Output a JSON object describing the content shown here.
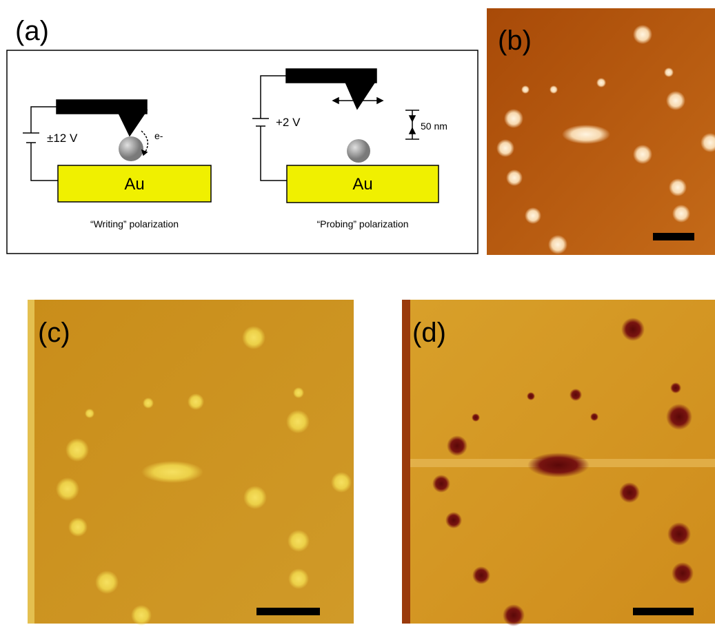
{
  "panels": {
    "a": {
      "label": "(a)",
      "writing": {
        "voltage": "±12 V",
        "electron": "e-",
        "substrate": "Au",
        "caption": "“Writing” polarization"
      },
      "probing": {
        "voltage": "+2 V",
        "scale": "50 nm",
        "substrate": "Au",
        "caption": "“Probing” polarization"
      }
    },
    "b": {
      "label": "(b)"
    },
    "c": {
      "label": "(c)"
    },
    "d": {
      "label": "(d)"
    }
  }
}
